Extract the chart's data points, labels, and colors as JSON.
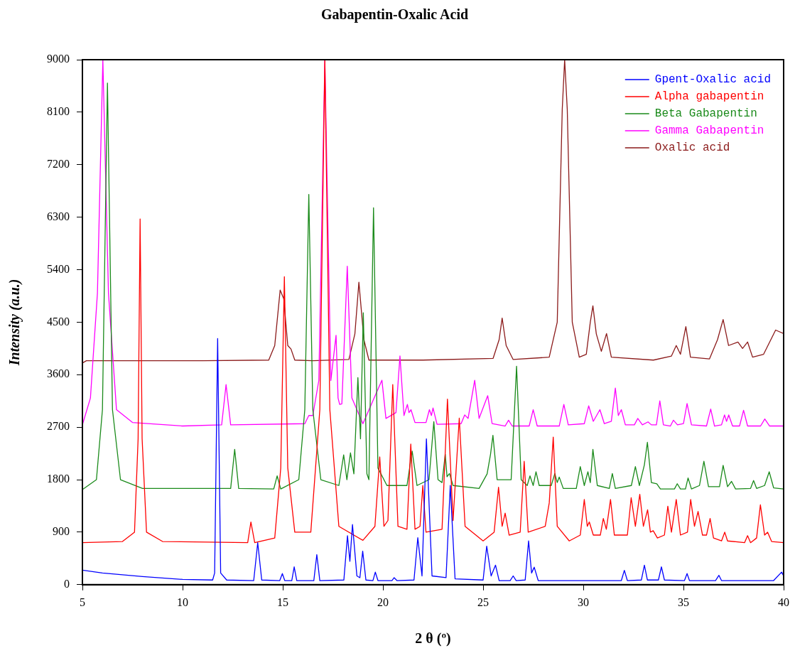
{
  "chart_data": {
    "type": "line",
    "title": "Gabapentin-Oxalic Acid",
    "xlabel": "2 θ (º)",
    "ylabel": "Intensity (a.u.)",
    "xlim": [
      5,
      40
    ],
    "xticks": [
      5,
      10,
      15,
      20,
      25,
      30,
      35,
      40
    ],
    "ylim": [
      0,
      9000
    ],
    "yticks": [
      0,
      900,
      1800,
      2700,
      3600,
      4500,
      5400,
      6300,
      7200,
      8100,
      9000
    ],
    "grid": false,
    "legend": "top right",
    "marker": "none",
    "line_style": "solid",
    "series": [
      {
        "name": "Gpent-Oxalic acid",
        "color": "#0000ff",
        "x": [
          5,
          6,
          8,
          10,
          11.5,
          11.6,
          11.75,
          11.9,
          12.2,
          13.55,
          13.75,
          13.95,
          14.85,
          14.98,
          15.1,
          15.45,
          15.57,
          15.7,
          16.55,
          16.7,
          16.85,
          18.05,
          18.23,
          18.35,
          18.48,
          18.7,
          18.85,
          18.99,
          19.15,
          19.5,
          19.62,
          19.75,
          20.45,
          20.56,
          20.7,
          21.55,
          21.74,
          21.95,
          22.17,
          22.45,
          23.15,
          23.36,
          23.6,
          25.0,
          25.18,
          25.4,
          25.62,
          25.8,
          26.35,
          26.5,
          26.65,
          27.1,
          27.27,
          27.42,
          27.55,
          27.75,
          31.9,
          32.05,
          32.2,
          32.9,
          33.05,
          33.2,
          33.75,
          33.9,
          34.05,
          35.05,
          35.18,
          35.3,
          36.6,
          36.77,
          36.9,
          39.5,
          39.9,
          40
        ],
        "values": [
          250,
          200,
          140,
          90,
          80,
          200,
          4220,
          200,
          80,
          70,
          720,
          80,
          70,
          190,
          70,
          70,
          305,
          70,
          70,
          515,
          70,
          80,
          840,
          400,
          1030,
          150,
          120,
          575,
          80,
          70,
          215,
          70,
          70,
          120,
          70,
          80,
          805,
          150,
          2500,
          150,
          120,
          1700,
          100,
          80,
          660,
          150,
          335,
          70,
          70,
          150,
          70,
          80,
          750,
          200,
          300,
          70,
          70,
          245,
          70,
          80,
          335,
          80,
          80,
          305,
          80,
          70,
          190,
          70,
          70,
          160,
          70,
          70,
          215,
          150
        ]
      },
      {
        "name": "Alpha gabapentin",
        "color": "#ff0000",
        "x": [
          5,
          7,
          7.6,
          7.78,
          7.88,
          7.98,
          8.2,
          9,
          13.25,
          13.41,
          13.6,
          14.6,
          14.9,
          15.08,
          15.25,
          15.6,
          16.4,
          16.85,
          17.1,
          17.35,
          17.8,
          19.0,
          19.6,
          19.84,
          20.05,
          20.25,
          20.49,
          20.75,
          21.2,
          21.39,
          21.6,
          21.85,
          21.99,
          22.15,
          22.95,
          23.22,
          23.5,
          23.81,
          24.1,
          25.0,
          25.55,
          25.77,
          25.95,
          26.1,
          26.3,
          26.85,
          27.05,
          27.25,
          28.1,
          28.3,
          28.5,
          28.7,
          29.3,
          29.85,
          30.05,
          30.2,
          30.3,
          30.5,
          30.85,
          31.0,
          31.15,
          31.36,
          31.55,
          32.2,
          32.39,
          32.6,
          32.82,
          33.0,
          33.21,
          33.35,
          33.49,
          33.7,
          34.05,
          34.22,
          34.4,
          34.64,
          34.85,
          35.2,
          35.36,
          35.55,
          35.73,
          35.95,
          36.15,
          36.33,
          36.5,
          36.9,
          37.06,
          37.2,
          38.05,
          38.2,
          38.35,
          38.65,
          38.84,
          39.05,
          39.2,
          39.4,
          40
        ],
        "values": [
          720,
          740,
          900,
          2500,
          6270,
          2500,
          900,
          740,
          720,
          1075,
          720,
          800,
          2000,
          5280,
          2000,
          900,
          900,
          3000,
          9000,
          3000,
          1000,
          760,
          1000,
          2190,
          1000,
          1100,
          3430,
          1000,
          950,
          2410,
          950,
          1000,
          1700,
          900,
          950,
          3180,
          1100,
          2855,
          1000,
          750,
          900,
          1670,
          1000,
          1225,
          850,
          900,
          2115,
          900,
          1000,
          1400,
          2530,
          1000,
          750,
          850,
          1460,
          1000,
          1075,
          850,
          850,
          1135,
          950,
          1460,
          850,
          850,
          1490,
          1000,
          1550,
          1000,
          1285,
          900,
          925,
          800,
          850,
          1345,
          900,
          1460,
          850,
          900,
          1460,
          1000,
          1255,
          850,
          850,
          1135,
          800,
          750,
          900,
          750,
          720,
          840,
          720,
          800,
          1370,
          850,
          900,
          740,
          720
        ]
      },
      {
        "name": "Beta Gabapentin",
        "color": "#1a8a1a",
        "x": [
          5,
          5.7,
          6.0,
          6.25,
          6.5,
          6.9,
          8,
          12.4,
          12.6,
          12.8,
          14.55,
          14.72,
          14.9,
          15.8,
          16.1,
          16.3,
          16.5,
          16.9,
          17.8,
          18.04,
          18.2,
          18.38,
          18.55,
          18.75,
          18.88,
          19.02,
          19.2,
          19.3,
          19.53,
          19.75,
          20.2,
          21.2,
          21.46,
          21.7,
          22.3,
          22.54,
          22.75,
          22.95,
          23.11,
          23.2,
          23.32,
          23.5,
          24.8,
          25.2,
          25.37,
          25.49,
          25.7,
          26.4,
          26.67,
          26.9,
          27.2,
          27.34,
          27.5,
          27.64,
          27.8,
          28.4,
          28.58,
          28.7,
          28.8,
          29.0,
          29.65,
          29.85,
          30.05,
          30.23,
          30.35,
          30.48,
          30.7,
          31.3,
          31.45,
          31.6,
          32.4,
          32.6,
          32.8,
          33.05,
          33.2,
          33.4,
          33.67,
          33.85,
          34.55,
          34.69,
          34.85,
          35.1,
          35.23,
          35.4,
          35.8,
          36.02,
          36.25,
          36.8,
          36.98,
          37.2,
          37.4,
          37.6,
          38.35,
          38.5,
          38.65,
          39.05,
          39.28,
          39.5,
          40
        ],
        "values": [
          1630,
          1800,
          3000,
          8600,
          3000,
          1800,
          1650,
          1650,
          2320,
          1650,
          1640,
          1865,
          1640,
          1800,
          3000,
          6690,
          3000,
          1800,
          1700,
          2225,
          1800,
          2260,
          1900,
          3550,
          2500,
          4660,
          1900,
          1800,
          6460,
          2000,
          1700,
          1700,
          2290,
          1700,
          1800,
          2795,
          1800,
          1750,
          2235,
          1850,
          1905,
          1700,
          1650,
          1900,
          2235,
          2560,
          1800,
          1800,
          3745,
          1800,
          1700,
          1865,
          1700,
          1935,
          1700,
          1700,
          1905,
          1750,
          1845,
          1650,
          1650,
          2025,
          1700,
          1935,
          1750,
          2320,
          1700,
          1650,
          1905,
          1650,
          1700,
          2025,
          1700,
          2055,
          2440,
          1750,
          1730,
          1640,
          1640,
          1730,
          1640,
          1640,
          1830,
          1640,
          1700,
          2115,
          1680,
          1680,
          2045,
          1680,
          1770,
          1640,
          1650,
          1785,
          1650,
          1700,
          1935,
          1660,
          1640
        ]
      },
      {
        "name": "Gamma Gabapentin",
        "color": "#ff00ff",
        "x": [
          5,
          5.4,
          5.75,
          6.02,
          6.3,
          6.7,
          7.5,
          10,
          11.95,
          12.17,
          12.4,
          16.1,
          16.3,
          16.5,
          16.8,
          17.1,
          17.4,
          17.66,
          17.76,
          17.84,
          17.95,
          18.22,
          18.45,
          19.0,
          19.95,
          20.15,
          20.65,
          20.85,
          21.05,
          21.22,
          21.3,
          21.4,
          21.6,
          22.15,
          22.32,
          22.42,
          22.5,
          22.7,
          23.9,
          24.08,
          24.25,
          24.58,
          24.8,
          25.23,
          25.45,
          26.1,
          26.27,
          26.45,
          27.3,
          27.5,
          27.7,
          28.8,
          29.03,
          29.25,
          30.05,
          30.27,
          30.5,
          30.83,
          31.05,
          31.4,
          31.6,
          31.75,
          31.9,
          32.1,
          32.55,
          32.72,
          32.95,
          33.23,
          33.4,
          33.65,
          33.82,
          34.0,
          34.35,
          34.5,
          34.7,
          35.0,
          35.18,
          35.4,
          36.15,
          36.36,
          36.55,
          36.9,
          37.05,
          37.15,
          37.26,
          37.45,
          37.8,
          38.0,
          38.2,
          38.85,
          39.06,
          39.3,
          40
        ],
        "values": [
          2740,
          3200,
          5000,
          9000,
          5000,
          3000,
          2780,
          2720,
          2740,
          3430,
          2740,
          2760,
          2900,
          2900,
          3500,
          9000,
          3500,
          4275,
          3200,
          3090,
          3100,
          5460,
          3200,
          2760,
          3505,
          2850,
          2950,
          3920,
          2900,
          3090,
          2950,
          3000,
          2780,
          2780,
          3000,
          2900,
          3030,
          2750,
          2760,
          2910,
          2850,
          3505,
          2850,
          3240,
          2760,
          2720,
          2820,
          2720,
          2720,
          3000,
          2720,
          2720,
          3090,
          2740,
          2760,
          3065,
          2800,
          3000,
          2760,
          2800,
          3370,
          2900,
          3000,
          2740,
          2740,
          2850,
          2740,
          2790,
          2740,
          2740,
          3150,
          2740,
          2720,
          2820,
          2740,
          2760,
          3105,
          2740,
          2720,
          3010,
          2720,
          2740,
          2910,
          2800,
          2910,
          2720,
          2720,
          2990,
          2720,
          2720,
          2840,
          2720,
          2720
        ]
      },
      {
        "name": "Oxalic acid",
        "color": "#8b1a1a",
        "x": [
          5,
          5.2,
          8,
          11,
          14.3,
          14.6,
          14.87,
          15.05,
          15.25,
          15.41,
          15.6,
          16.5,
          18.3,
          18.6,
          18.8,
          19.05,
          19.3,
          22,
          25.5,
          25.8,
          25.95,
          26.15,
          26.5,
          28.3,
          28.7,
          28.95,
          29.07,
          29.2,
          29.45,
          29.8,
          30.15,
          30.35,
          30.48,
          30.65,
          30.9,
          31.16,
          31.4,
          33.5,
          34.4,
          34.64,
          34.85,
          35.12,
          35.35,
          36.3,
          36.7,
          36.98,
          37.25,
          37.72,
          37.95,
          38.2,
          38.45,
          39.0,
          39.6,
          40
        ],
        "values": [
          3800,
          3840,
          3840,
          3840,
          3850,
          4100,
          5050,
          4900,
          4100,
          4040,
          3850,
          3840,
          3860,
          4300,
          5185,
          4200,
          3850,
          3850,
          3880,
          4200,
          4570,
          4100,
          3860,
          3900,
          4500,
          8150,
          9000,
          8150,
          4500,
          3900,
          3950,
          4500,
          4780,
          4300,
          4000,
          4305,
          3900,
          3850,
          3920,
          4100,
          3950,
          4425,
          3900,
          3870,
          4200,
          4545,
          4100,
          4160,
          4050,
          4160,
          3900,
          3950,
          4365,
          4305
        ]
      }
    ]
  }
}
